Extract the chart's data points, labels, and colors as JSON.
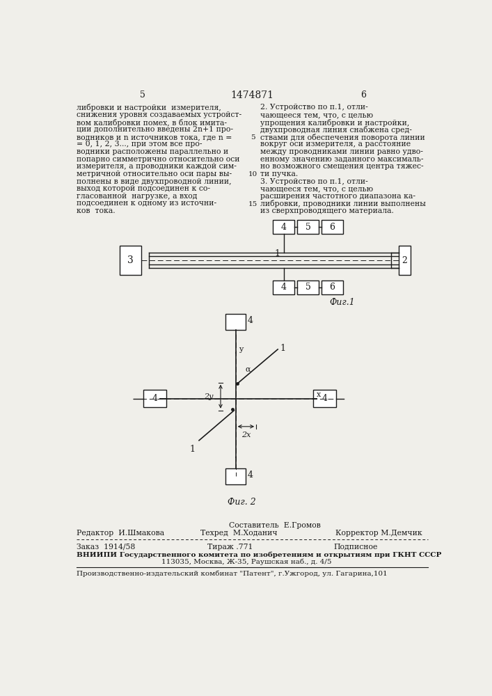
{
  "page_number_left": "5",
  "page_number_center": "1474871",
  "page_number_right": "6",
  "text_left_col": [
    "либровки и настройки  измерителя,",
    "снижения уровня создаваемых устройст-",
    "вом калибровки помех, в блок имита-",
    "ции дополнительно введены 2n+1 про-",
    "водников и n источников тока, где n =",
    "= 0, 1, 2, 3..., при этом все про-",
    "водники расположены параллельно и",
    "попарно симметрично относительно оси",
    "измерителя, а проводники каждой сим-",
    "метричной относительно оси пары вы-",
    "полнены в виде двухпроводной линии,",
    "выход которой подсоединен к со-",
    "гласованной  нагрузке, а вход",
    "подсоединен к одному из источни-",
    "ков  тока."
  ],
  "text_right_col": [
    "2. Устройство по п.1, отли-",
    "чающееся тем, что, с целью",
    "упрощения калибровки и настройки,",
    "двухпроводная линия снабжена сред-",
    "ствами для обеспечения поворота линии",
    "вокруг оси измерителя, а расстояние",
    "между проводниками линии равно удво-",
    "енному значению заданного максималь-",
    "но возможного смещения центра тяжес-",
    "ти пучка.",
    "3. Устройство по п.1, отли-",
    "чающееся тем, что, с целью",
    "расширения частотного диапазона ка-",
    "либровки, проводники линии выполнены",
    "из сверхпроводящего материала."
  ],
  "background_color": "#f0efea",
  "text_color": "#1a1a1a",
  "line_color": "#1a1a1a"
}
